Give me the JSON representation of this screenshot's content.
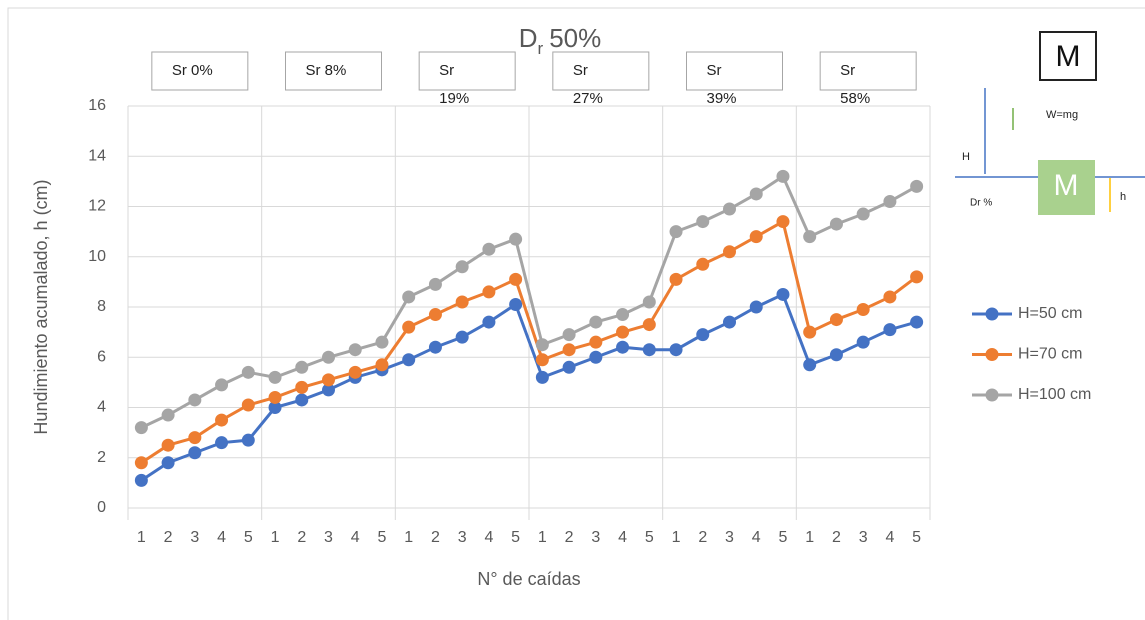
{
  "chart_data": {
    "type": "line",
    "title": {
      "main": "D",
      "sub": "r",
      "rest": "50%"
    },
    "x_label": "N° de caídas",
    "y_label": "Hundimiento acumalado, h (cm)",
    "categories": [
      "1",
      "2",
      "3",
      "4",
      "5",
      "1",
      "2",
      "3",
      "4",
      "5",
      "1",
      "2",
      "3",
      "4",
      "5",
      "1",
      "2",
      "3",
      "4",
      "5",
      "1",
      "2",
      "3",
      "4",
      "5",
      "1",
      "2",
      "3",
      "4",
      "5"
    ],
    "groups": [
      "Sr 0%",
      "Sr 8%",
      "Sr\n19%",
      "Sr\n27%",
      "Sr\n39%",
      "Sr\n58%"
    ],
    "series": [
      {
        "name": "H=50 cm",
        "color": "#4472c4",
        "values": [
          1.1,
          1.8,
          2.2,
          2.6,
          2.7,
          4.0,
          4.3,
          4.7,
          5.2,
          5.5,
          5.9,
          6.4,
          6.8,
          7.4,
          8.1,
          5.2,
          5.6,
          6.0,
          6.4,
          6.3,
          6.3,
          6.9,
          7.4,
          8.0,
          8.5,
          5.7,
          6.1,
          6.6,
          7.1,
          7.4
        ]
      },
      {
        "name": "H=70 cm",
        "color": "#ed7d31",
        "values": [
          1.8,
          2.5,
          2.8,
          3.5,
          4.1,
          4.4,
          4.8,
          5.1,
          5.4,
          5.7,
          7.2,
          7.7,
          8.2,
          8.6,
          9.1,
          5.9,
          6.3,
          6.6,
          7.0,
          7.3,
          9.1,
          9.7,
          10.2,
          10.8,
          11.4,
          7.0,
          7.5,
          7.9,
          8.4,
          9.2
        ]
      },
      {
        "name": "H=100 cm",
        "color": "#a5a5a5",
        "values": [
          3.2,
          3.7,
          4.3,
          4.9,
          5.4,
          5.2,
          5.6,
          6.0,
          6.3,
          6.6,
          8.4,
          8.9,
          9.6,
          10.3,
          10.7,
          6.5,
          6.9,
          7.4,
          7.7,
          8.2,
          11.0,
          11.4,
          11.9,
          12.5,
          13.2,
          10.8,
          11.3,
          11.7,
          12.2,
          12.8
        ]
      }
    ],
    "ylim": [
      0,
      16
    ],
    "yticks": [
      0,
      2,
      4,
      6,
      8,
      10,
      12,
      14,
      16
    ],
    "grid": true,
    "legend": "right"
  },
  "diagram": {
    "mass_top": "M",
    "weight": "W=mg",
    "height": "H",
    "density": "Dr %",
    "mass_bottom": "M",
    "sink": "h"
  }
}
